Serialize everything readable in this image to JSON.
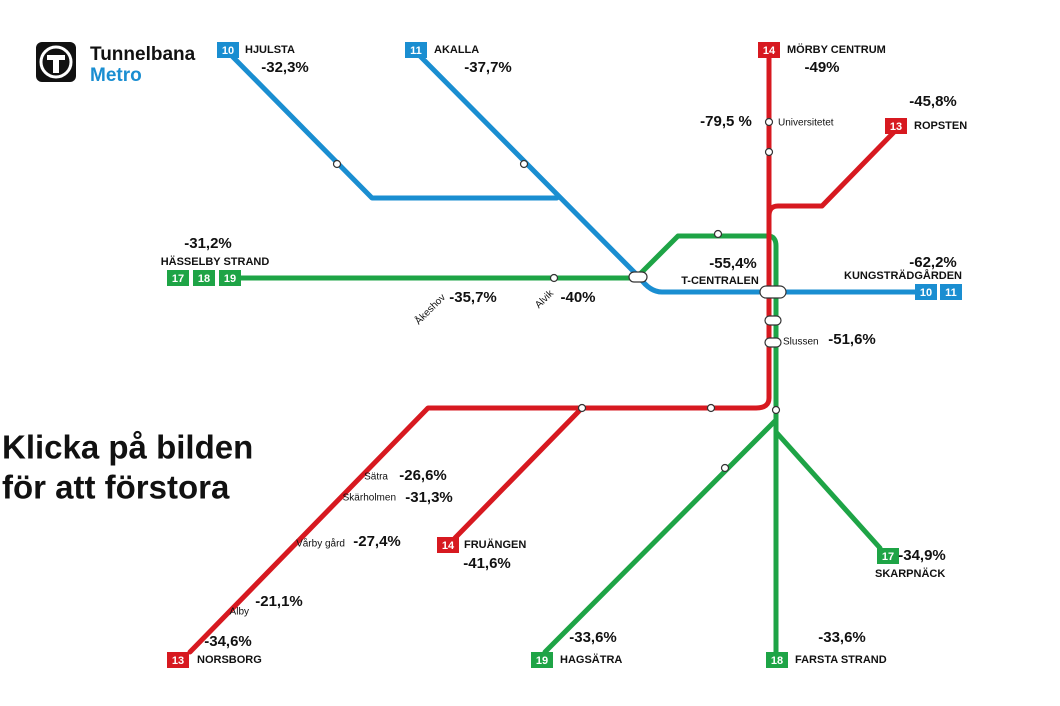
{
  "logo": {
    "title": "Tunnelbana",
    "subtitle": "Metro"
  },
  "call_to_action": [
    "Klicka på bilden",
    "för att förstora"
  ],
  "terminals": [
    {
      "name": "HJULSTA",
      "change": "-32,3%",
      "lines": [
        {
          "number": "10",
          "color": "#1a8ed1"
        }
      ]
    },
    {
      "name": "AKALLA",
      "change": "-37,7%",
      "lines": [
        {
          "number": "11",
          "color": "#1a8ed1"
        }
      ]
    },
    {
      "name": "MÖRBY CENTRUM",
      "change": "-49%",
      "lines": [
        {
          "number": "14",
          "color": "#d71920"
        }
      ]
    },
    {
      "name": "ROPSTEN",
      "change": "-45,8%",
      "lines": [
        {
          "number": "13",
          "color": "#d71920"
        }
      ]
    },
    {
      "name": "HÄSSELBY STRAND",
      "change": "-31,2%",
      "lines": [
        {
          "number": "17",
          "color": "#1ea446"
        },
        {
          "number": "18",
          "color": "#1ea446"
        },
        {
          "number": "19",
          "color": "#1ea446"
        }
      ]
    },
    {
      "name": "KUNGSTRÄDGÅRDEN",
      "change": "-62,2%",
      "lines": [
        {
          "number": "10",
          "color": "#1a8ed1"
        },
        {
          "number": "11",
          "color": "#1a8ed1"
        }
      ]
    },
    {
      "name": "NORSBORG",
      "change": "-34,6%",
      "lines": [
        {
          "number": "13",
          "color": "#d71920"
        }
      ]
    },
    {
      "name": "FRUÄNGEN",
      "change": "-41,6%",
      "lines": [
        {
          "number": "14",
          "color": "#d71920"
        }
      ]
    },
    {
      "name": "HAGSÄTRA",
      "change": "-33,6%",
      "lines": [
        {
          "number": "19",
          "color": "#1ea446"
        }
      ]
    },
    {
      "name": "FARSTA STRAND",
      "change": "-33,6%",
      "lines": [
        {
          "number": "18",
          "color": "#1ea446"
        }
      ]
    },
    {
      "name": "SKARPNÄCK",
      "change": "-34,9%",
      "lines": [
        {
          "number": "17",
          "color": "#1ea446"
        }
      ]
    }
  ],
  "stations": [
    {
      "name": "Universitetet",
      "change": "-79,5 %"
    },
    {
      "name": "T-CENTRALEN",
      "change": "-55,4%"
    },
    {
      "name": "Åkeshov",
      "change": "-35,7%"
    },
    {
      "name": "Alvik",
      "change": "-40%"
    },
    {
      "name": "Slussen",
      "change": "-51,6%"
    },
    {
      "name": "Sätra",
      "change": "-26,6%"
    },
    {
      "name": "Skärholmen",
      "change": "-31,3%"
    },
    {
      "name": "Vårby gård",
      "change": "-27,4%"
    },
    {
      "name": "Alby",
      "change": "-21,1%"
    }
  ]
}
